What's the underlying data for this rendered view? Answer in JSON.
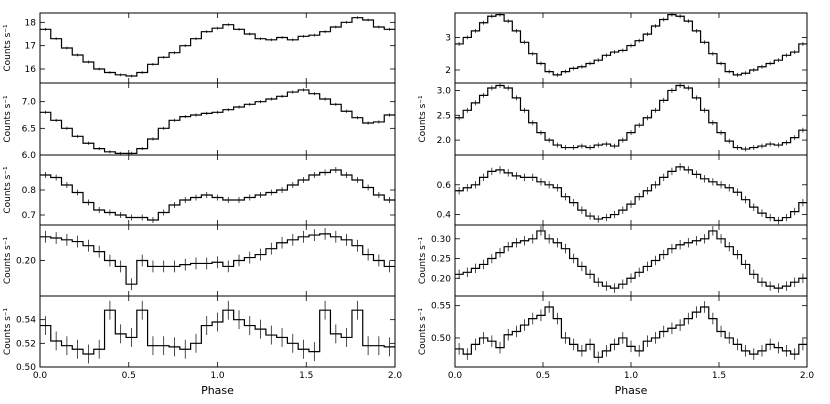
{
  "chart_data": [
    {
      "type": "line",
      "column": "left",
      "row": 0,
      "ylabel": "Counts s⁻¹",
      "ylim": [
        15.4,
        18.4
      ],
      "yticks": [
        16,
        17,
        18
      ],
      "ytick_labels": [
        "16",
        "17",
        "18"
      ],
      "xlim": [
        0,
        2
      ],
      "values": [
        17.7,
        17.3,
        16.9,
        16.6,
        16.3,
        16.0,
        15.85,
        15.75,
        15.7,
        15.85,
        16.2,
        16.5,
        16.7,
        17.0,
        17.3,
        17.6,
        17.75,
        17.9,
        17.7,
        17.5,
        17.3,
        17.25,
        17.35,
        17.25,
        17.4,
        17.45,
        17.6,
        17.8,
        18.0,
        18.2,
        18.1,
        17.8,
        17.7
      ],
      "errors": 0.06
    },
    {
      "type": "line",
      "column": "left",
      "row": 1,
      "ylabel": "Counts s⁻¹",
      "ylim": [
        6.0,
        7.35
      ],
      "yticks": [
        6.0,
        6.5,
        7.0
      ],
      "ytick_labels": [
        "6.0",
        "6.5",
        "7.0"
      ],
      "xlim": [
        0,
        2
      ],
      "values": [
        6.8,
        6.65,
        6.5,
        6.35,
        6.22,
        6.12,
        6.06,
        6.03,
        6.03,
        6.12,
        6.3,
        6.5,
        6.65,
        6.72,
        6.75,
        6.78,
        6.8,
        6.85,
        6.9,
        6.95,
        7.0,
        7.05,
        7.1,
        7.18,
        7.22,
        7.15,
        7.05,
        6.95,
        6.82,
        6.7,
        6.6,
        6.62,
        6.75
      ],
      "errors": 0.03
    },
    {
      "type": "line",
      "column": "left",
      "row": 2,
      "ylabel": "Counts s⁻¹",
      "ylim": [
        0.66,
        0.94
      ],
      "yticks": [
        0.7,
        0.8
      ],
      "ytick_labels": [
        "0.7",
        "0.8"
      ],
      "xlim": [
        0,
        2
      ],
      "values": [
        0.86,
        0.85,
        0.82,
        0.79,
        0.75,
        0.72,
        0.71,
        0.7,
        0.69,
        0.69,
        0.68,
        0.71,
        0.74,
        0.76,
        0.77,
        0.78,
        0.77,
        0.76,
        0.76,
        0.77,
        0.78,
        0.79,
        0.8,
        0.82,
        0.84,
        0.86,
        0.87,
        0.88,
        0.86,
        0.84,
        0.81,
        0.78,
        0.76
      ],
      "errors": 0.012
    },
    {
      "type": "line",
      "column": "left",
      "row": 3,
      "ylabel": "Counts s⁻¹",
      "ylim": [
        0.14,
        0.26
      ],
      "yticks": [
        0.2
      ],
      "ytick_labels": [
        "0.20"
      ],
      "xlim": [
        0,
        2
      ],
      "values": [
        0.24,
        0.238,
        0.235,
        0.232,
        0.225,
        0.215,
        0.2,
        0.19,
        0.16,
        0.2,
        0.19,
        0.19,
        0.19,
        0.193,
        0.195,
        0.195,
        0.197,
        0.19,
        0.2,
        0.205,
        0.21,
        0.22,
        0.23,
        0.235,
        0.24,
        0.243,
        0.245,
        0.24,
        0.235,
        0.225,
        0.21,
        0.2,
        0.19
      ],
      "errors": 0.01
    },
    {
      "type": "line",
      "column": "left",
      "row": 4,
      "ylabel": "Counts s⁻¹",
      "ylim": [
        0.5,
        0.56
      ],
      "yticks": [
        0.5,
        0.52,
        0.54
      ],
      "ytick_labels": [
        "0.50",
        "0.52",
        "0.54"
      ],
      "xlim": [
        0,
        2
      ],
      "values": [
        0.535,
        0.522,
        0.518,
        0.515,
        0.511,
        0.515,
        0.548,
        0.528,
        0.525,
        0.548,
        0.518,
        0.518,
        0.517,
        0.515,
        0.52,
        0.535,
        0.538,
        0.548,
        0.54,
        0.535,
        0.532,
        0.527,
        0.525,
        0.52,
        0.515,
        0.513,
        0.548,
        0.528,
        0.525,
        0.548,
        0.518,
        0.518,
        0.517
      ],
      "errors": 0.008
    },
    {
      "type": "line",
      "column": "right",
      "row": 0,
      "ylabel": "",
      "ylim": [
        1.6,
        3.75
      ],
      "yticks": [
        2,
        3
      ],
      "ytick_labels": [
        "2",
        "3"
      ],
      "xlim": [
        0,
        2
      ],
      "values": [
        2.8,
        3.0,
        3.2,
        3.45,
        3.65,
        3.7,
        3.5,
        3.2,
        2.85,
        2.5,
        2.2,
        1.95,
        1.85,
        1.95,
        2.05,
        2.1,
        2.2,
        2.3,
        2.45,
        2.55,
        2.6,
        2.75,
        2.9,
        3.1,
        3.35,
        3.55,
        3.7,
        3.65,
        3.5,
        3.2,
        2.85,
        2.5,
        2.2,
        1.95,
        1.85,
        1.9,
        2.0,
        2.1,
        2.2,
        2.3,
        2.45,
        2.55,
        2.8
      ],
      "errors": 0.06
    },
    {
      "type": "line",
      "column": "right",
      "row": 1,
      "ylabel": "Counts s⁻¹",
      "ylim": [
        1.7,
        3.15
      ],
      "yticks": [
        2.0,
        2.5,
        3.0
      ],
      "ytick_labels": [
        "2.0",
        "2.5",
        "3.0"
      ],
      "xlim": [
        0,
        2
      ],
      "values": [
        2.45,
        2.6,
        2.75,
        2.9,
        3.05,
        3.1,
        3.05,
        2.85,
        2.6,
        2.35,
        2.15,
        2.0,
        1.9,
        1.85,
        1.85,
        1.88,
        1.85,
        1.9,
        1.92,
        1.88,
        2.0,
        2.15,
        2.3,
        2.45,
        2.6,
        2.8,
        3.0,
        3.1,
        3.05,
        2.85,
        2.6,
        2.35,
        2.15,
        1.98,
        1.85,
        1.82,
        1.85,
        1.88,
        1.92,
        1.9,
        1.95,
        2.05,
        2.2
      ],
      "errors": 0.05
    },
    {
      "type": "line",
      "column": "right",
      "row": 2,
      "ylabel": "",
      "ylim": [
        0.33,
        0.8
      ],
      "yticks": [
        0.4,
        0.6
      ],
      "ytick_labels": [
        "0.4",
        "0.6"
      ],
      "xlim": [
        0,
        2
      ],
      "values": [
        0.56,
        0.58,
        0.6,
        0.65,
        0.69,
        0.7,
        0.68,
        0.66,
        0.65,
        0.65,
        0.62,
        0.6,
        0.58,
        0.52,
        0.48,
        0.43,
        0.39,
        0.37,
        0.38,
        0.4,
        0.43,
        0.47,
        0.52,
        0.56,
        0.6,
        0.65,
        0.69,
        0.72,
        0.7,
        0.67,
        0.64,
        0.62,
        0.6,
        0.58,
        0.55,
        0.5,
        0.45,
        0.41,
        0.38,
        0.36,
        0.38,
        0.42,
        0.48
      ],
      "errors": 0.025
    },
    {
      "type": "line",
      "column": "right",
      "row": 3,
      "ylabel": "Counts s⁻¹",
      "ylim": [
        0.155,
        0.335
      ],
      "yticks": [
        0.2,
        0.25,
        0.3
      ],
      "ytick_labels": [
        "0.20",
        "0.25",
        "0.30"
      ],
      "xlim": [
        0,
        2
      ],
      "values": [
        0.21,
        0.215,
        0.225,
        0.235,
        0.25,
        0.265,
        0.28,
        0.29,
        0.295,
        0.3,
        0.32,
        0.3,
        0.29,
        0.275,
        0.25,
        0.23,
        0.21,
        0.19,
        0.18,
        0.175,
        0.185,
        0.2,
        0.215,
        0.23,
        0.245,
        0.26,
        0.275,
        0.285,
        0.29,
        0.295,
        0.3,
        0.32,
        0.3,
        0.28,
        0.26,
        0.235,
        0.21,
        0.19,
        0.18,
        0.175,
        0.18,
        0.19,
        0.2
      ],
      "errors": 0.012
    },
    {
      "type": "line",
      "column": "right",
      "row": 4,
      "ylabel": "Counts s⁻¹",
      "ylim": [
        0.455,
        0.565
      ],
      "yticks": [
        0.5,
        0.55
      ],
      "ytick_labels": [
        "0.50",
        "0.55"
      ],
      "xlim": [
        0,
        2
      ],
      "values": [
        0.483,
        0.475,
        0.49,
        0.5,
        0.495,
        0.485,
        0.505,
        0.51,
        0.52,
        0.53,
        0.535,
        0.548,
        0.53,
        0.5,
        0.49,
        0.48,
        0.49,
        0.47,
        0.48,
        0.49,
        0.5,
        0.487,
        0.48,
        0.495,
        0.5,
        0.51,
        0.515,
        0.52,
        0.53,
        0.54,
        0.548,
        0.53,
        0.51,
        0.5,
        0.49,
        0.48,
        0.475,
        0.48,
        0.49,
        0.485,
        0.48,
        0.475,
        0.49
      ],
      "errors": 0.009
    }
  ],
  "x_axis": {
    "label": "Phase",
    "ticks": [
      0.0,
      0.5,
      1.0,
      1.5,
      2.0
    ],
    "tick_labels": [
      "0.0",
      "0.5",
      "1.0",
      "1.5",
      "2.0"
    ]
  }
}
